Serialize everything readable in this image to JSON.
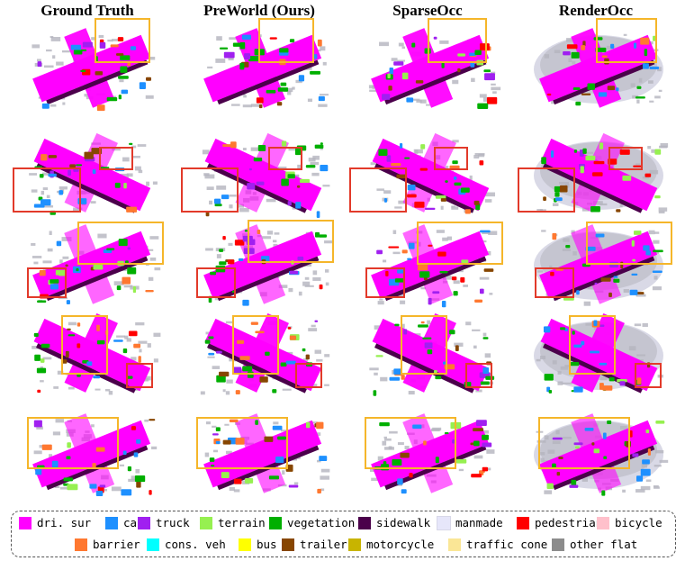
{
  "columns": [
    {
      "title": "Ground Truth"
    },
    {
      "title": "PreWorld (Ours)"
    },
    {
      "title": "SparseOcc"
    },
    {
      "title": "RenderOcc"
    }
  ],
  "legend": [
    {
      "label": "dri. sur",
      "color": "#ff00ff"
    },
    {
      "label": "car",
      "color": "#1e90ff"
    },
    {
      "label": "truck",
      "color": "#a020f0"
    },
    {
      "label": "terrain",
      "color": "#96f050"
    },
    {
      "label": "vegetation",
      "color": "#00af00"
    },
    {
      "label": "sidewalk",
      "color": "#4b004b"
    },
    {
      "label": "manmade",
      "color": "#e6e6fa"
    },
    {
      "label": "pedestrian",
      "color": "#ff0000"
    },
    {
      "label": "bicycle",
      "color": "#ffc0cb"
    },
    {
      "label": "barrier",
      "color": "#ff7830"
    },
    {
      "label": "cons. veh",
      "color": "#00ffff"
    },
    {
      "label": "bus",
      "color": "#ffff00"
    },
    {
      "label": "trailer",
      "color": "#874600"
    },
    {
      "label": "motorcycle",
      "color": "#c8b400"
    },
    {
      "label": "traffic cone",
      "color": "#fae696"
    },
    {
      "label": "other flat",
      "color": "#8c8c8c"
    }
  ],
  "colors": {
    "highlight_yellow": "#f5b62a",
    "highlight_red": "#e23a2a",
    "manmade_gray": "#b4b4be"
  }
}
